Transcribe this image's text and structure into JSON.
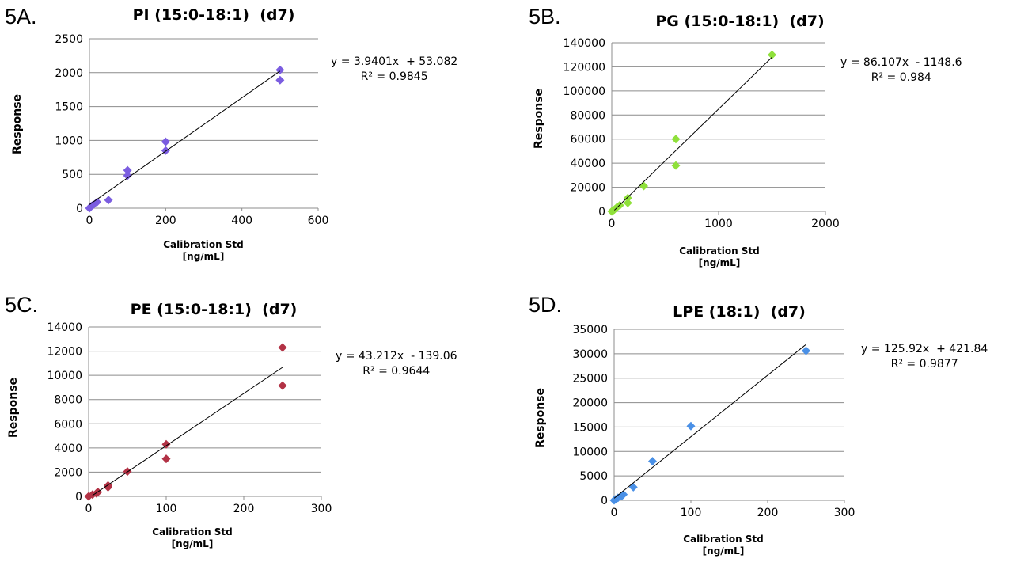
{
  "chart_data": [
    {
      "type": "scatter",
      "panel_label": "5A.",
      "title": "PI (15:0-18:1)  (d7)",
      "xlabel": "Calibration Std",
      "xlabel_units": "[ng/mL]",
      "ylabel": "Response",
      "xlim": [
        0,
        600
      ],
      "ylim": [
        0,
        2500
      ],
      "xticks": [
        "0",
        "200",
        "400",
        "600"
      ],
      "yticks": [
        "0",
        "500",
        "1000",
        "1500",
        "2000",
        "2500"
      ],
      "marker_color": "#7b5de0",
      "grid": "horizontal",
      "series": [
        {
          "x": [
            0,
            2,
            5,
            10,
            20,
            50,
            100,
            100,
            200,
            200,
            500,
            500
          ],
          "y": [
            0,
            15,
            30,
            50,
            90,
            120,
            480,
            560,
            850,
            980,
            1890,
            2040
          ]
        }
      ],
      "trendline": {
        "slope": 3.9401,
        "intercept": 53.082,
        "x_range": [
          0,
          500
        ]
      },
      "equation": "y = 3.9401x  + 53.082",
      "r2": "R² = 0.9845"
    },
    {
      "type": "scatter",
      "panel_label": "5B.",
      "title": "PG (15:0-18:1)  (d7)",
      "xlabel": "Calibration Std",
      "xlabel_units": "[ng/mL]",
      "ylabel": "Response",
      "xlim": [
        0,
        2000
      ],
      "ylim": [
        0,
        140000
      ],
      "xticks": [
        "0",
        "1000",
        "2000"
      ],
      "yticks": [
        "0",
        "20000",
        "40000",
        "60000",
        "80000",
        "100000",
        "120000",
        "140000"
      ],
      "marker_color": "#8fe03a",
      "grid": "horizontal",
      "series": [
        {
          "x": [
            0,
            10,
            25,
            50,
            75,
            150,
            150,
            300,
            600,
            600,
            1500
          ],
          "y": [
            0,
            500,
            1500,
            3500,
            5000,
            7000,
            11000,
            21000,
            38000,
            60000,
            130000
          ]
        }
      ],
      "trendline": {
        "slope": 86.107,
        "intercept": -1148.6,
        "x_range": [
          25,
          1500
        ]
      },
      "equation": "y = 86.107x  - 1148.6",
      "r2": "R² = 0.984"
    },
    {
      "type": "scatter",
      "panel_label": "5C.",
      "title": "PE (15:0-18:1)  (d7)",
      "xlabel": "Calibration Std",
      "xlabel_units": "[ng/mL]",
      "ylabel": "Response",
      "xlim": [
        0,
        300
      ],
      "ylim": [
        0,
        14000
      ],
      "xticks": [
        "0",
        "100",
        "200",
        "300"
      ],
      "yticks": [
        "0",
        "2000",
        "4000",
        "6000",
        "8000",
        "10000",
        "12000",
        "14000"
      ],
      "marker_color": "#b23245",
      "grid": "horizontal",
      "series": [
        {
          "x": [
            0,
            5,
            10,
            12,
            25,
            25,
            50,
            100,
            100,
            250,
            250
          ],
          "y": [
            0,
            150,
            250,
            350,
            750,
            900,
            2050,
            3100,
            4300,
            9150,
            12300
          ]
        }
      ],
      "trendline": {
        "slope": 43.212,
        "intercept": -139.06,
        "x_range": [
          5,
          250
        ]
      },
      "equation": "y = 43.212x  - 139.06",
      "r2": "R² = 0.9644"
    },
    {
      "type": "scatter",
      "panel_label": "5D.",
      "title": "LPE (18:1)  (d7)",
      "xlabel": "Calibration Std",
      "xlabel_units": "[ng/mL]",
      "ylabel": "Response",
      "xlim": [
        0,
        300
      ],
      "ylim": [
        0,
        35000
      ],
      "xticks": [
        "0",
        "100",
        "200",
        "300"
      ],
      "yticks": [
        "0",
        "5000",
        "10000",
        "15000",
        "20000",
        "25000",
        "30000",
        "35000"
      ],
      "marker_color": "#4a90e6",
      "grid": "horizontal",
      "series": [
        {
          "x": [
            0,
            2,
            5,
            10,
            12,
            25,
            50,
            100,
            250
          ],
          "y": [
            0,
            200,
            500,
            900,
            1200,
            2700,
            8000,
            15200,
            30600
          ]
        }
      ],
      "trendline": {
        "slope": 125.92,
        "intercept": 421.84,
        "x_range": [
          0,
          250
        ]
      },
      "equation": "y = 125.92x  + 421.84",
      "r2": "R² = 0.9877"
    }
  ]
}
